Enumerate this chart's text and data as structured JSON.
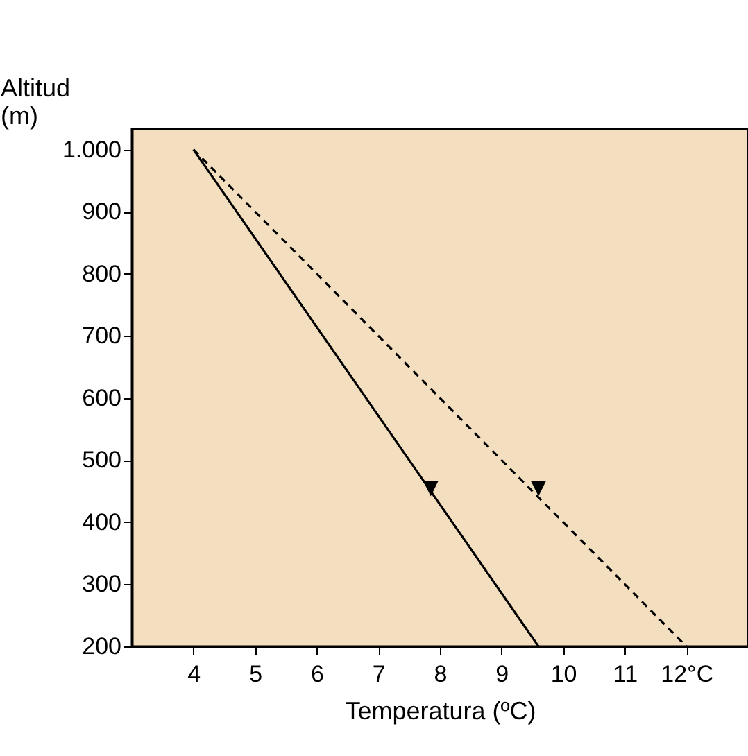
{
  "chart_data": {
    "type": "line",
    "xlabel": "Temperatura (ºC)",
    "ylabel": "Altitud (m)",
    "xlim": [
      3,
      13
    ],
    "ylim": [
      200,
      1033
    ],
    "xticks": [
      4,
      5,
      6,
      7,
      8,
      9,
      10,
      11,
      {
        "value": 12,
        "label": "12°C"
      }
    ],
    "yticks": [
      200,
      300,
      400,
      500,
      600,
      700,
      800,
      900,
      {
        "value": 1000,
        "label": "1.000"
      }
    ],
    "grid": false,
    "marker": "none",
    "series": [
      {
        "color": "#000000",
        "line_style": "solid",
        "x": [
          4,
          9.6
        ],
        "values": [
          1000,
          200
        ]
      },
      {
        "color": "#000000",
        "line_style": "dashed",
        "x": [
          4,
          12
        ],
        "values": [
          1000,
          200
        ]
      }
    ],
    "annotations": [
      {
        "text": "▼",
        "x": 7.85,
        "y": 455
      },
      {
        "text": "▼",
        "x": 9.6,
        "y": 455
      }
    ]
  }
}
